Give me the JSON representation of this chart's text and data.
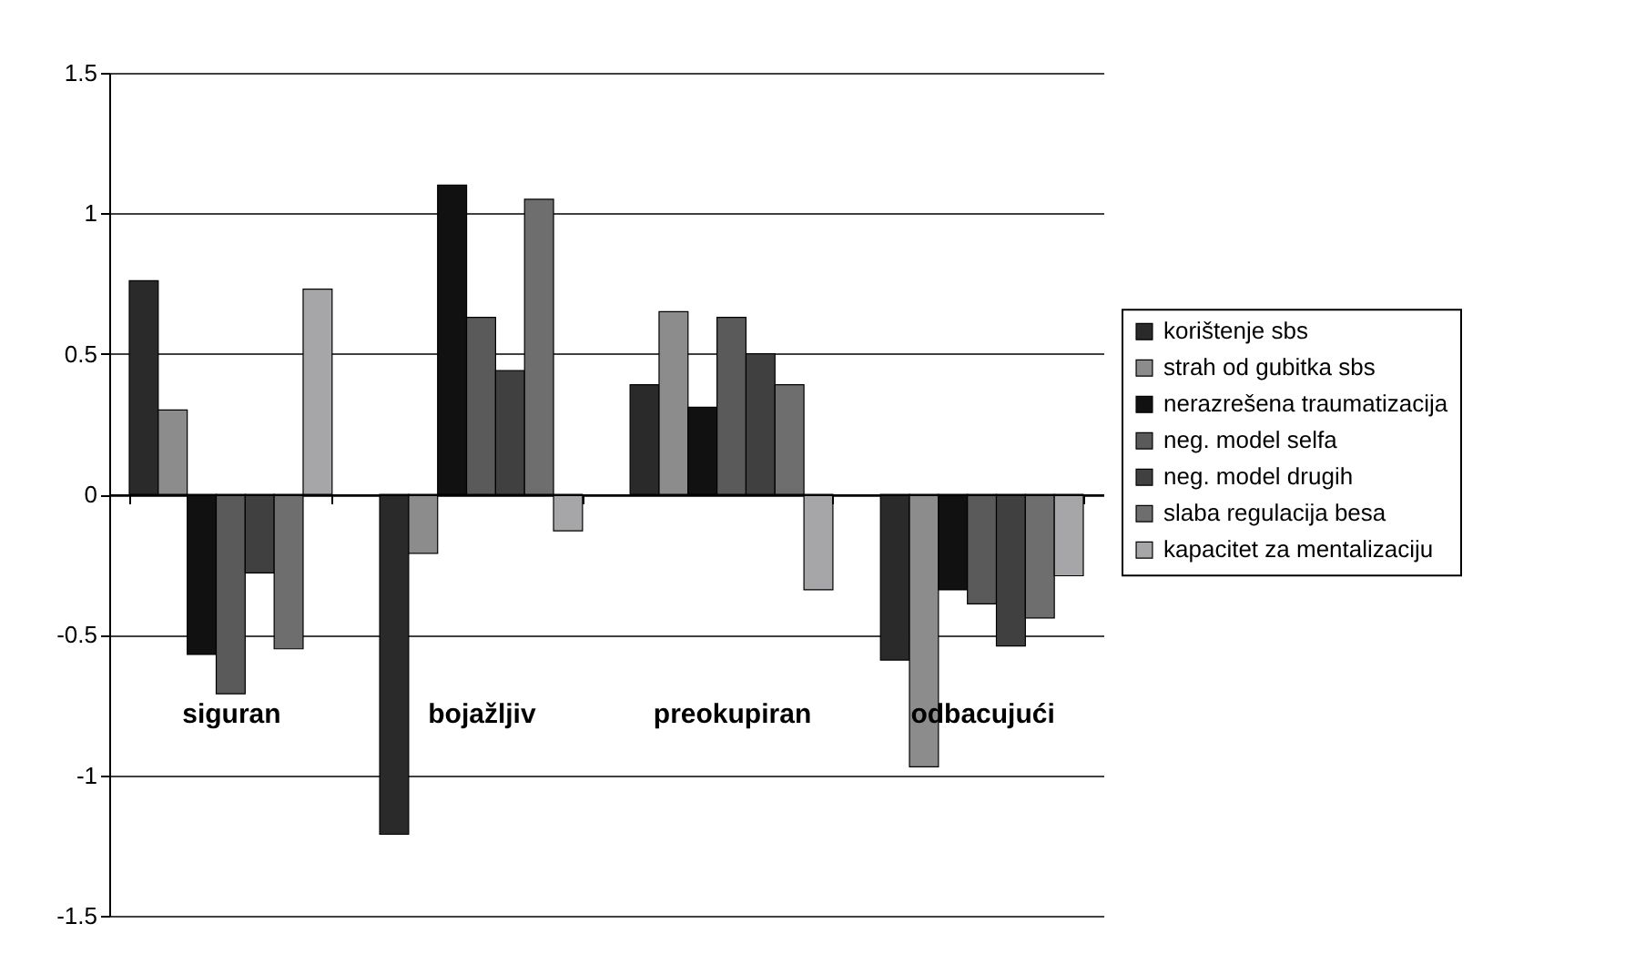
{
  "chart_data": {
    "type": "bar",
    "categories": [
      "siguran",
      "bojažljiv",
      "preokupiran",
      "odbacujući"
    ],
    "series": [
      {
        "name": "korištenje sbs",
        "color": "#2a2a2a",
        "values": [
          0.76,
          -1.21,
          0.39,
          -0.59
        ]
      },
      {
        "name": "strah od gubitka sbs",
        "color": "#8c8c8c",
        "values": [
          0.3,
          -0.21,
          0.65,
          -0.97
        ]
      },
      {
        "name": "nerazrešena traumatizacija",
        "color": "#111111",
        "values": [
          -0.57,
          1.1,
          0.31,
          -0.34
        ]
      },
      {
        "name": "neg. model selfa",
        "color": "#5a5a5a",
        "values": [
          -0.71,
          0.63,
          0.63,
          -0.39
        ]
      },
      {
        "name": "neg. model drugih",
        "color": "#404040",
        "values": [
          -0.28,
          0.44,
          0.5,
          -0.54
        ]
      },
      {
        "name": "slaba regulacija besa",
        "color": "#6e6e6e",
        "values": [
          -0.55,
          1.05,
          0.39,
          -0.44
        ]
      },
      {
        "name": "kapacitet za mentalizaciju",
        "color": "#a6a6a8",
        "values": [
          0.73,
          -0.13,
          -0.34,
          -0.29
        ]
      }
    ],
    "ylim": [
      -1.5,
      1.5
    ],
    "yticks": [
      -1.5,
      -1,
      -0.5,
      0,
      0.5,
      1,
      1.5
    ],
    "grid": "y",
    "legend": "right"
  }
}
